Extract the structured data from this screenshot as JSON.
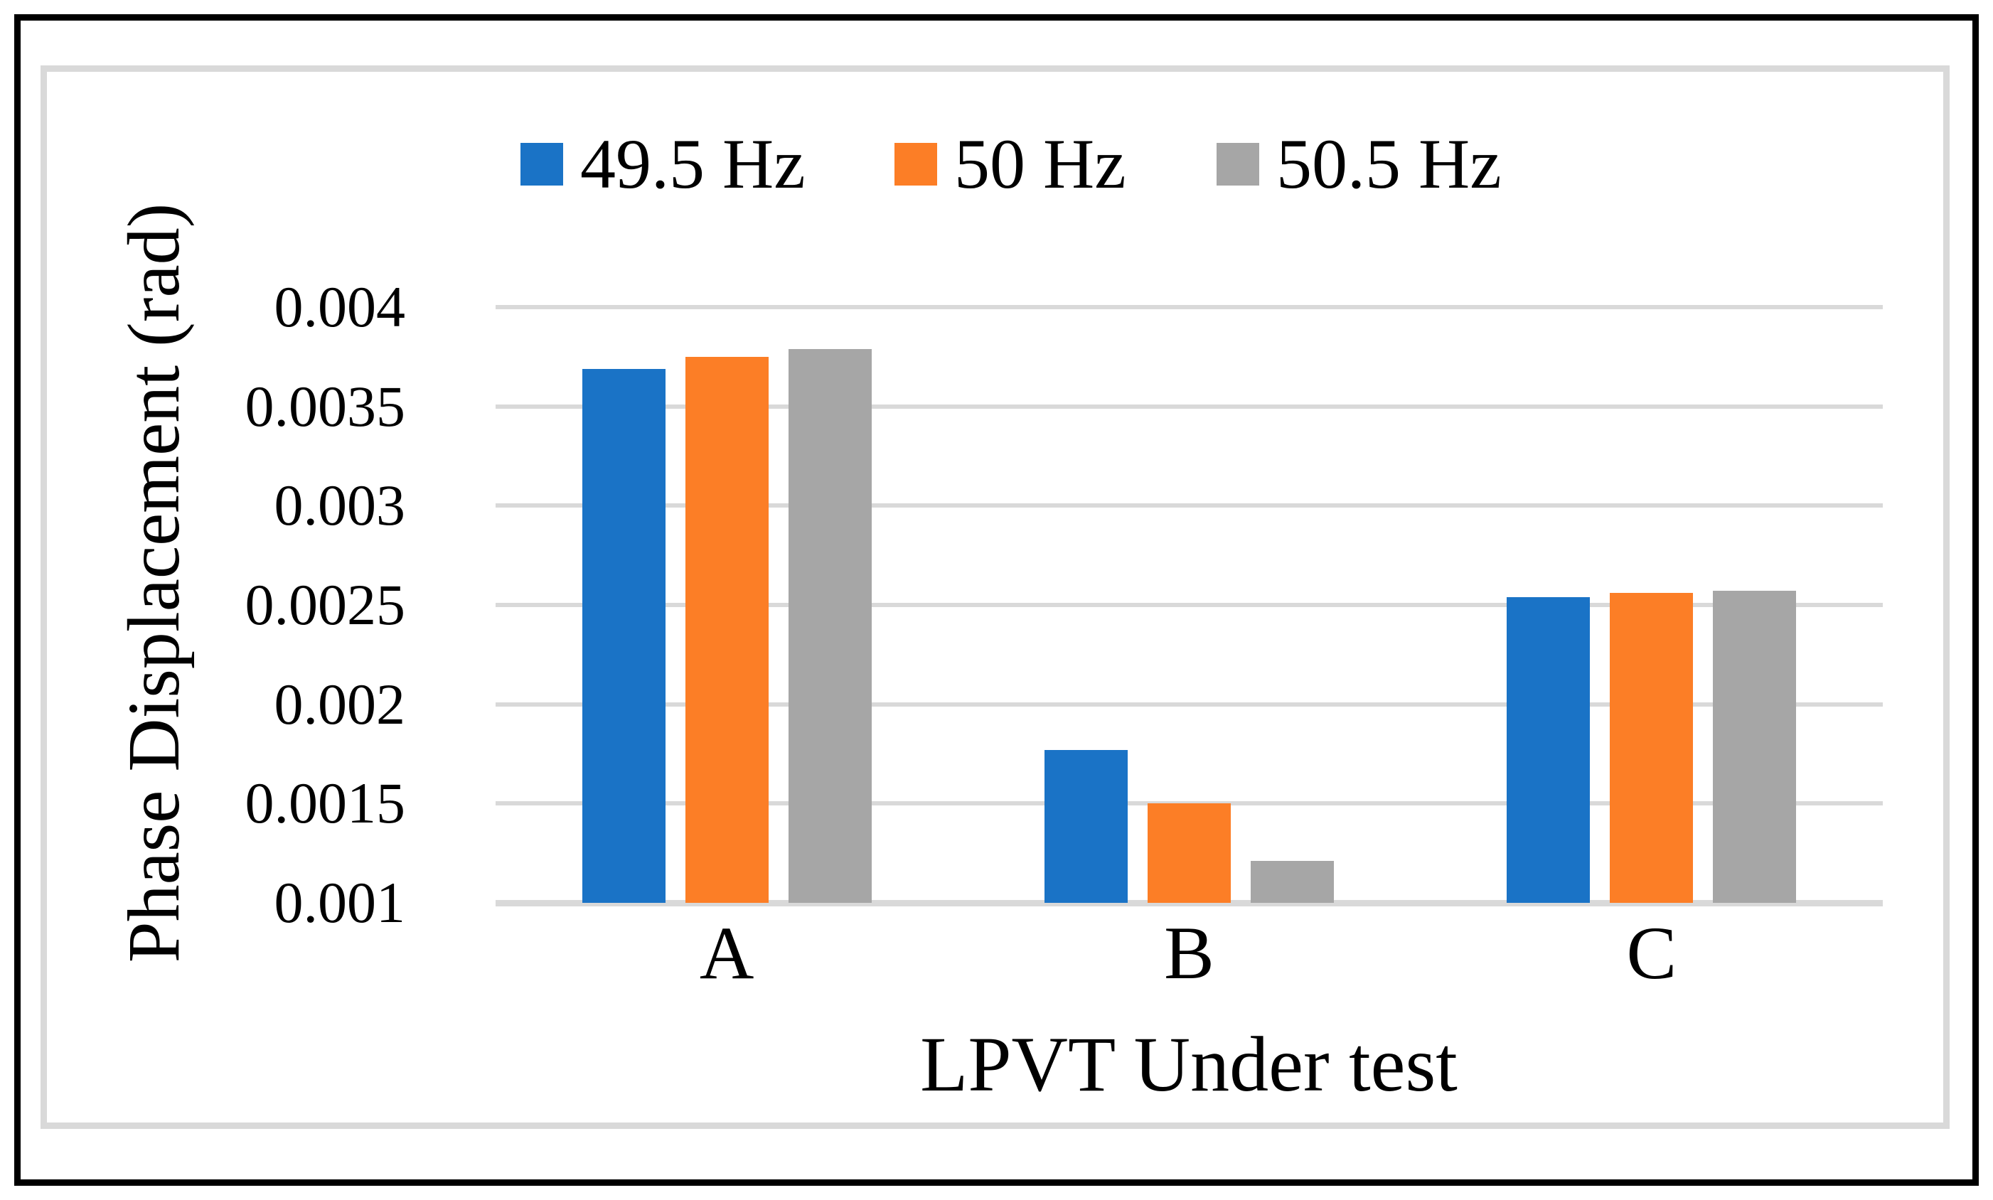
{
  "figure": {
    "outer_border_color": "#000000",
    "panel_border_color": "#d9d9d9",
    "background_color": "#ffffff",
    "text_color": "#000000"
  },
  "chart_data": {
    "type": "bar",
    "title": "",
    "xlabel": "LPVT Under test",
    "ylabel": "Phase Displacement (rad)",
    "categories": [
      "A",
      "B",
      "C"
    ],
    "series": [
      {
        "name": "49.5 Hz",
        "color": "#1a73c6",
        "values": [
          0.00369,
          0.00177,
          0.00254
        ]
      },
      {
        "name": "50 Hz",
        "color": "#fc7e26",
        "values": [
          0.00375,
          0.0015,
          0.00256
        ]
      },
      {
        "name": "50.5 Hz",
        "color": "#a6a6a6",
        "values": [
          0.00379,
          0.00121,
          0.00257
        ]
      }
    ],
    "ylim": [
      0.001,
      0.004
    ],
    "baseline": 0.001,
    "yticks": [
      {
        "label": "0.004",
        "value": 0.004
      },
      {
        "label": "0.0035",
        "value": 0.0035
      },
      {
        "label": "0.003",
        "value": 0.003
      },
      {
        "label": "0.0025",
        "value": 0.0025
      },
      {
        "label": "0.002",
        "value": 0.002
      },
      {
        "label": "0.0015",
        "value": 0.0015
      },
      {
        "label": "0.001",
        "value": 0.001
      }
    ],
    "grid": "horizontal",
    "gridline_color": "#d9d9d9",
    "legend_position": "top"
  }
}
